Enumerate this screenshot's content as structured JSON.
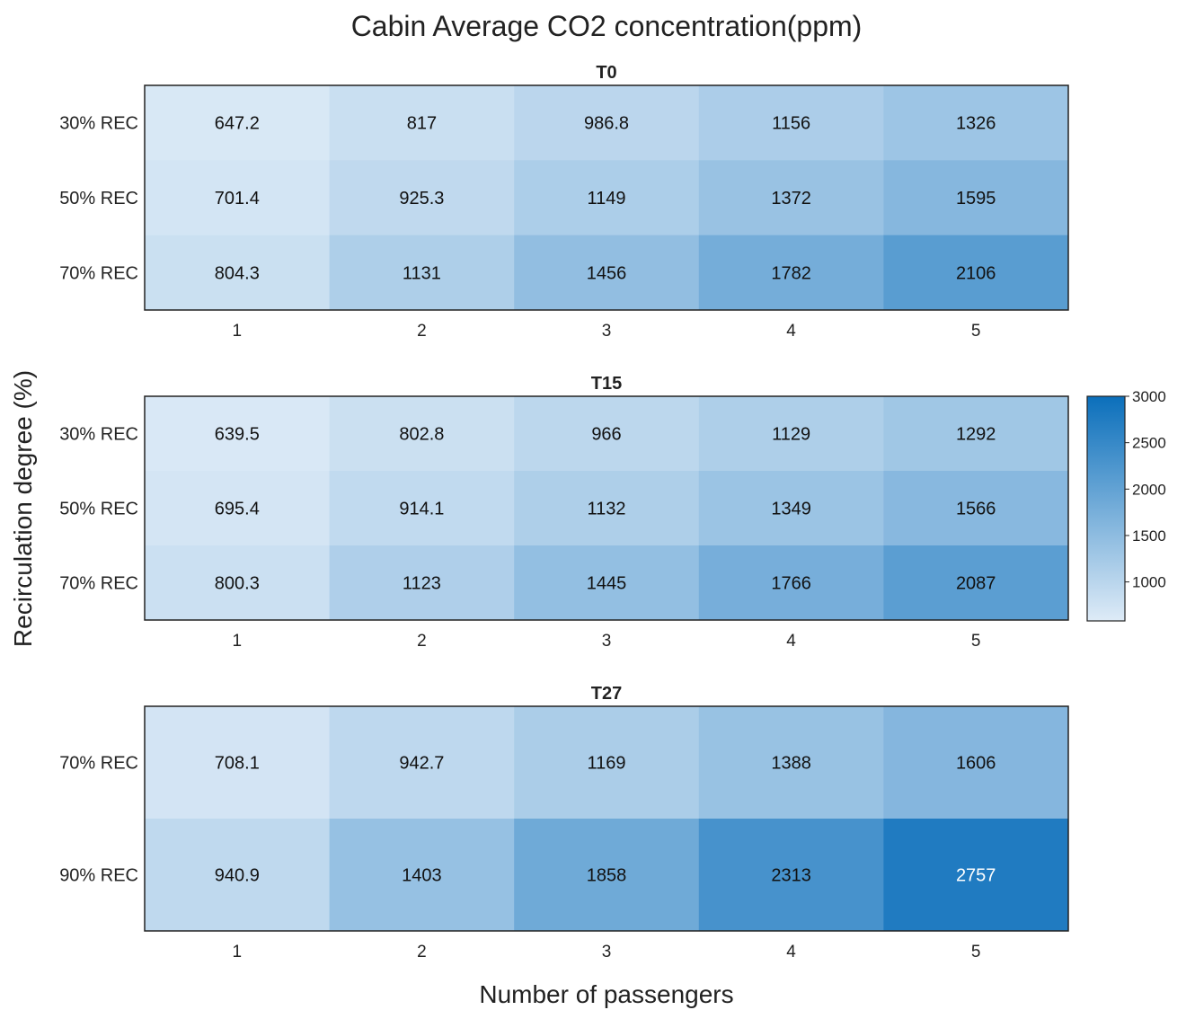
{
  "chart_data": {
    "type": "heatmap",
    "title": "Cabin Average CO2 concentration(ppm)",
    "xlabel": "Number of passengers",
    "ylabel": "Recirculation degree (%)",
    "x_categories": [
      "1",
      "2",
      "3",
      "4",
      "5"
    ],
    "colormap": {
      "low": "#deebf7",
      "high": "#0b6fbb",
      "range": [
        580,
        3000
      ]
    },
    "colorbar": {
      "ticks": [
        "1000",
        "1500",
        "2000",
        "2500",
        "3000"
      ],
      "tick_values": [
        1000,
        1500,
        2000,
        2500,
        3000
      ]
    },
    "panels": [
      {
        "title": "T0",
        "rows": [
          "30% REC",
          "50% REC",
          "70% REC"
        ],
        "values": [
          [
            647.2,
            817,
            986.8,
            1156,
            1326
          ],
          [
            701.4,
            925.3,
            1149,
            1372,
            1595
          ],
          [
            804.3,
            1131,
            1456,
            1782,
            2106
          ]
        ],
        "labels": [
          [
            "647.2",
            "817",
            "986.8",
            "1156",
            "1326"
          ],
          [
            "701.4",
            "925.3",
            "1149",
            "1372",
            "1595"
          ],
          [
            "804.3",
            "1131",
            "1456",
            "1782",
            "2106"
          ]
        ]
      },
      {
        "title": "T15",
        "rows": [
          "30% REC",
          "50% REC",
          "70% REC"
        ],
        "values": [
          [
            639.5,
            802.8,
            966,
            1129,
            1292
          ],
          [
            695.4,
            914.1,
            1132,
            1349,
            1566
          ],
          [
            800.3,
            1123,
            1445,
            1766,
            2087
          ]
        ],
        "labels": [
          [
            "639.5",
            "802.8",
            "966",
            "1129",
            "1292"
          ],
          [
            "695.4",
            "914.1",
            "1132",
            "1349",
            "1566"
          ],
          [
            "800.3",
            "1123",
            "1445",
            "1766",
            "2087"
          ]
        ]
      },
      {
        "title": "T27",
        "rows": [
          "70% REC",
          "90% REC"
        ],
        "values": [
          [
            708.1,
            942.7,
            1169,
            1388,
            1606
          ],
          [
            940.9,
            1403,
            1858,
            2313,
            2757
          ]
        ],
        "labels": [
          [
            "708.1",
            "942.7",
            "1169",
            "1388",
            "1606"
          ],
          [
            "940.9",
            "1403",
            "1858",
            "2313",
            "2757"
          ]
        ]
      }
    ]
  }
}
